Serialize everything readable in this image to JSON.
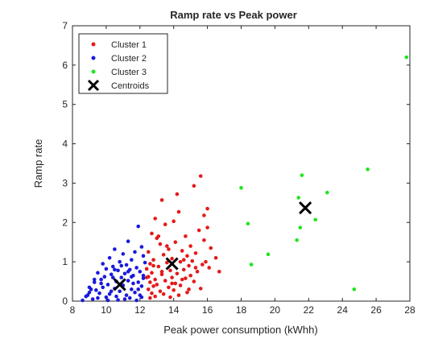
{
  "chart_data": {
    "type": "scatter",
    "title": "Ramp rate vs Peak power",
    "xlabel": "Peak power consumption (kWhh)",
    "ylabel": "Ramp rate",
    "xlim": [
      8,
      28
    ],
    "ylim": [
      0,
      7
    ],
    "xticks": [
      "8",
      "10",
      "12",
      "14",
      "16",
      "18",
      "20",
      "22",
      "24",
      "26",
      "28"
    ],
    "yticks": [
      "0",
      "1",
      "2",
      "3",
      "4",
      "5",
      "6",
      "7"
    ],
    "legend_position": "top-left",
    "series": [
      {
        "name": "Cluster 1",
        "color": "#e41a1a",
        "marker": "dot",
        "points": [
          [
            15.6,
            3.18
          ],
          [
            15.2,
            2.93
          ],
          [
            14.2,
            2.72
          ],
          [
            13.3,
            2.57
          ],
          [
            16.0,
            2.35
          ],
          [
            14.3,
            2.27
          ],
          [
            15.8,
            2.18
          ],
          [
            12.9,
            2.1
          ],
          [
            14.0,
            2.03
          ],
          [
            13.5,
            1.95
          ],
          [
            16.0,
            1.87
          ],
          [
            15.5,
            1.8
          ],
          [
            12.7,
            1.72
          ],
          [
            14.7,
            1.65
          ],
          [
            13.0,
            1.6
          ],
          [
            15.8,
            1.55
          ],
          [
            14.1,
            1.5
          ],
          [
            13.2,
            1.45
          ],
          [
            15.0,
            1.4
          ],
          [
            16.2,
            1.35
          ],
          [
            13.7,
            1.32
          ],
          [
            14.5,
            1.28
          ],
          [
            12.5,
            1.25
          ],
          [
            15.3,
            1.22
          ],
          [
            13.4,
            1.18
          ],
          [
            14.8,
            1.15
          ],
          [
            16.5,
            1.1
          ],
          [
            13.9,
            1.08
          ],
          [
            12.8,
            1.05
          ],
          [
            15.1,
            1.02
          ],
          [
            14.4,
            1.0
          ],
          [
            13.6,
            0.98
          ],
          [
            12.6,
            0.95
          ],
          [
            15.7,
            0.93
          ],
          [
            14.9,
            0.9
          ],
          [
            13.1,
            0.88
          ],
          [
            16.1,
            0.85
          ],
          [
            12.4,
            0.82
          ],
          [
            14.6,
            0.8
          ],
          [
            13.8,
            0.78
          ],
          [
            15.4,
            0.75
          ],
          [
            16.7,
            0.75
          ],
          [
            12.7,
            0.72
          ],
          [
            14.2,
            0.7
          ],
          [
            13.3,
            0.68
          ],
          [
            15.0,
            0.65
          ],
          [
            12.5,
            0.62
          ],
          [
            13.9,
            0.6
          ],
          [
            14.7,
            0.58
          ],
          [
            12.9,
            0.55
          ],
          [
            13.5,
            0.52
          ],
          [
            15.2,
            0.5
          ],
          [
            12.6,
            0.48
          ],
          [
            14.1,
            0.45
          ],
          [
            13.0,
            0.42
          ],
          [
            14.4,
            0.4
          ],
          [
            12.8,
            0.38
          ],
          [
            13.7,
            0.35
          ],
          [
            15.6,
            0.32
          ],
          [
            12.5,
            0.3
          ],
          [
            14.0,
            0.28
          ],
          [
            13.2,
            0.25
          ],
          [
            14.8,
            0.22
          ],
          [
            12.7,
            0.2
          ],
          [
            13.4,
            0.18
          ],
          [
            14.3,
            0.15
          ],
          [
            12.9,
            0.12
          ],
          [
            13.8,
            0.1
          ],
          [
            12.6,
            0.08
          ],
          [
            14.5,
            0.55
          ],
          [
            13.6,
            1.4
          ],
          [
            15.9,
            1.0
          ],
          [
            14.9,
            0.3
          ],
          [
            13.1,
            1.65
          ],
          [
            12.4,
            0.6
          ],
          [
            15.3,
            0.85
          ],
          [
            13.3,
            0.75
          ],
          [
            14.6,
            1.05
          ],
          [
            12.8,
            0.9
          ],
          [
            13.9,
            0.45
          ]
        ]
      },
      {
        "name": "Cluster 2",
        "color": "#1a1adc",
        "marker": "dot",
        "points": [
          [
            11.9,
            1.9
          ],
          [
            11.3,
            1.52
          ],
          [
            12.1,
            1.38
          ],
          [
            10.5,
            1.32
          ],
          [
            11.7,
            1.25
          ],
          [
            11.0,
            1.2
          ],
          [
            12.2,
            1.15
          ],
          [
            10.2,
            1.1
          ],
          [
            11.5,
            1.05
          ],
          [
            10.8,
            1.0
          ],
          [
            12.3,
            0.98
          ],
          [
            9.8,
            0.95
          ],
          [
            11.2,
            0.92
          ],
          [
            10.4,
            0.88
          ],
          [
            11.8,
            0.85
          ],
          [
            10.0,
            0.82
          ],
          [
            11.4,
            0.8
          ],
          [
            10.7,
            0.78
          ],
          [
            12.0,
            0.75
          ],
          [
            9.5,
            0.72
          ],
          [
            11.1,
            0.7
          ],
          [
            10.3,
            0.68
          ],
          [
            11.6,
            0.65
          ],
          [
            9.9,
            0.62
          ],
          [
            10.9,
            0.6
          ],
          [
            12.2,
            0.58
          ],
          [
            9.3,
            0.55
          ],
          [
            11.3,
            0.52
          ],
          [
            10.6,
            0.5
          ],
          [
            11.9,
            0.48
          ],
          [
            9.7,
            0.45
          ],
          [
            10.1,
            0.42
          ],
          [
            11.0,
            0.4
          ],
          [
            12.1,
            0.38
          ],
          [
            9.0,
            0.35
          ],
          [
            10.5,
            0.32
          ],
          [
            11.5,
            0.3
          ],
          [
            9.4,
            0.28
          ],
          [
            10.8,
            0.25
          ],
          [
            11.7,
            0.22
          ],
          [
            9.6,
            0.2
          ],
          [
            10.2,
            0.18
          ],
          [
            11.2,
            0.15
          ],
          [
            8.8,
            0.12
          ],
          [
            10.0,
            0.1
          ],
          [
            11.4,
            0.08
          ],
          [
            9.2,
            0.05
          ],
          [
            10.7,
            0.03
          ],
          [
            8.6,
            0.02
          ],
          [
            11.8,
            0.02
          ],
          [
            9.0,
            0.22
          ],
          [
            10.4,
            0.6
          ],
          [
            11.1,
            0.05
          ],
          [
            9.8,
            0.35
          ],
          [
            12.0,
            0.15
          ],
          [
            10.9,
            0.9
          ],
          [
            9.5,
            0.08
          ],
          [
            11.6,
            0.45
          ],
          [
            10.3,
            0.25
          ],
          [
            12.2,
            0.65
          ],
          [
            9.1,
            0.3
          ],
          [
            10.6,
            0.12
          ],
          [
            11.3,
            0.75
          ],
          [
            9.7,
            0.55
          ],
          [
            10.1,
            0.02
          ],
          [
            11.9,
            0.3
          ],
          [
            8.9,
            0.15
          ],
          [
            10.8,
            0.42
          ],
          [
            11.5,
            0.62
          ],
          [
            9.3,
            0.48
          ],
          [
            10.5,
            0.8
          ],
          [
            12.1,
            0.1
          ]
        ]
      },
      {
        "name": "Cluster 3",
        "color": "#1ee61e",
        "marker": "dot",
        "points": [
          [
            27.8,
            6.2
          ],
          [
            25.5,
            3.35
          ],
          [
            21.6,
            3.2
          ],
          [
            18.0,
            2.88
          ],
          [
            23.1,
            2.76
          ],
          [
            21.4,
            2.63
          ],
          [
            22.4,
            2.07
          ],
          [
            18.4,
            1.97
          ],
          [
            21.5,
            1.87
          ],
          [
            21.3,
            1.55
          ],
          [
            19.6,
            1.19
          ],
          [
            18.6,
            0.93
          ],
          [
            24.7,
            0.3
          ]
        ]
      }
    ],
    "centroids": {
      "name": "Centroids",
      "color": "#000000",
      "marker": "x",
      "points": [
        [
          10.8,
          0.42
        ],
        [
          13.9,
          0.95
        ],
        [
          21.8,
          2.37
        ]
      ]
    }
  }
}
